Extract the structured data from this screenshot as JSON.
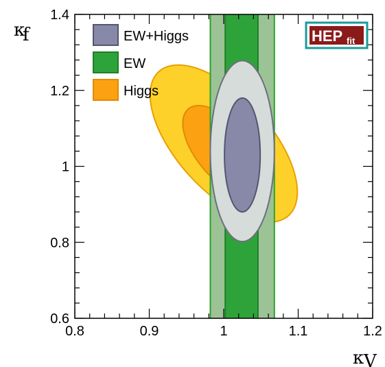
{
  "chart_data": {
    "type": "contour",
    "xlabel": "κ",
    "xlabel_sub": "V",
    "ylabel": "κ",
    "ylabel_sub": "f",
    "xlim": [
      0.8,
      1.2
    ],
    "ylim": [
      0.6,
      1.4
    ],
    "xticks": [
      0.8,
      0.9,
      1,
      1.1,
      1.2
    ],
    "xtick_labels": [
      "0.8",
      "0.9",
      "1",
      "1.1",
      "1.2"
    ],
    "yticks": [
      0.6,
      0.8,
      1,
      1.2,
      1.4
    ],
    "ytick_labels": [
      "0.6",
      "0.8",
      "1",
      "1.2",
      "1.4"
    ],
    "grid": false,
    "legend_position": "top-left",
    "logo": {
      "main": "HEP",
      "sub": "fit",
      "bg_color": "#8b1a1a",
      "border_color": "#1a9a9a"
    },
    "series": [
      {
        "name": "Higgs",
        "kind": "ellipse-contours",
        "outer": {
          "cx": 1.0,
          "cy": 1.06,
          "rx": 0.063,
          "ry": 0.255,
          "rotation_deg": -42,
          "color": "#fdd12a",
          "stroke": "#e8a000"
        },
        "inner": {
          "cx": 1.0,
          "cy": 1.04,
          "rx": 0.036,
          "ry": 0.145,
          "rotation_deg": -40,
          "color": "#fca212",
          "stroke": "#e08a00"
        }
      },
      {
        "name": "EW",
        "kind": "vertical-bands",
        "outer": {
          "xmin": 0.982,
          "xmax": 1.068,
          "color": "#9cc396",
          "stroke": "#2ca02c"
        },
        "inner": {
          "xmin": 1.002,
          "xmax": 1.046,
          "color": "#2ea33a",
          "stroke": "#1f7f2a"
        }
      },
      {
        "name": "EW+Higgs",
        "kind": "ellipse-contours",
        "outer": {
          "cx": 1.025,
          "cy": 1.04,
          "rx": 0.043,
          "ry": 0.238,
          "rotation_deg": 0,
          "color": "#d5dcda",
          "stroke": "#6e6e7e"
        },
        "inner": {
          "cx": 1.025,
          "cy": 1.03,
          "rx": 0.024,
          "ry": 0.15,
          "rotation_deg": 0,
          "color": "#8888a8",
          "stroke": "#555570"
        }
      }
    ],
    "legend": [
      {
        "label": "EW+Higgs",
        "color": "#8888a8",
        "border": "#555570"
      },
      {
        "label": "EW",
        "color": "#2ea33a",
        "border": "#1f7f2a"
      },
      {
        "label": "Higgs",
        "color": "#fca212",
        "border": "#e08a00"
      }
    ]
  }
}
